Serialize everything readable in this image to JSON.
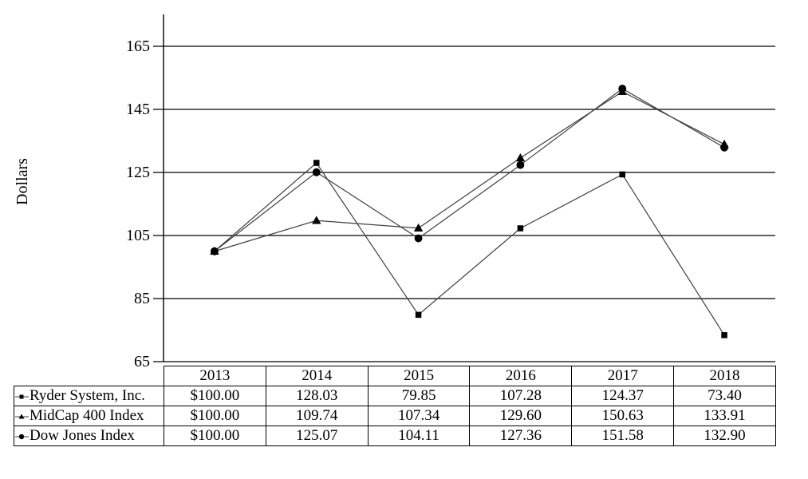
{
  "chart_data": {
    "type": "line",
    "title": "",
    "xlabel": "",
    "ylabel": "Dollars",
    "categories": [
      "2013",
      "2014",
      "2015",
      "2016",
      "2017",
      "2018"
    ],
    "yticks": [
      165,
      145,
      125,
      105,
      85,
      65
    ],
    "ylim": [
      65,
      165
    ],
    "grid": true,
    "legend_position": "table-left-column",
    "series": [
      {
        "name": "Ryder System, Inc.",
        "marker": "square",
        "values": [
          100.0,
          128.03,
          79.85,
          107.28,
          124.37,
          73.4
        ],
        "display": [
          "$100.00",
          "128.03",
          "79.85",
          "107.28",
          "124.37",
          "73.40"
        ]
      },
      {
        "name": "MidCap 400 Index",
        "marker": "triangle",
        "values": [
          100.0,
          109.74,
          107.34,
          129.6,
          150.63,
          133.91
        ],
        "display": [
          "$100.00",
          "109.74",
          "107.34",
          "129.60",
          "150.63",
          "133.91"
        ]
      },
      {
        "name": "Dow Jones Index",
        "marker": "circle",
        "values": [
          100.0,
          125.07,
          104.11,
          127.36,
          151.58,
          132.9
        ],
        "display": [
          "$100.00",
          "125.07",
          "104.11",
          "127.36",
          "151.58",
          "132.90"
        ]
      }
    ]
  },
  "colors": {
    "line": "#3f3f3f",
    "marker": "#000000",
    "grid": "#000000",
    "axis": "#000000",
    "text": "#000000",
    "background": "#ffffff"
  }
}
